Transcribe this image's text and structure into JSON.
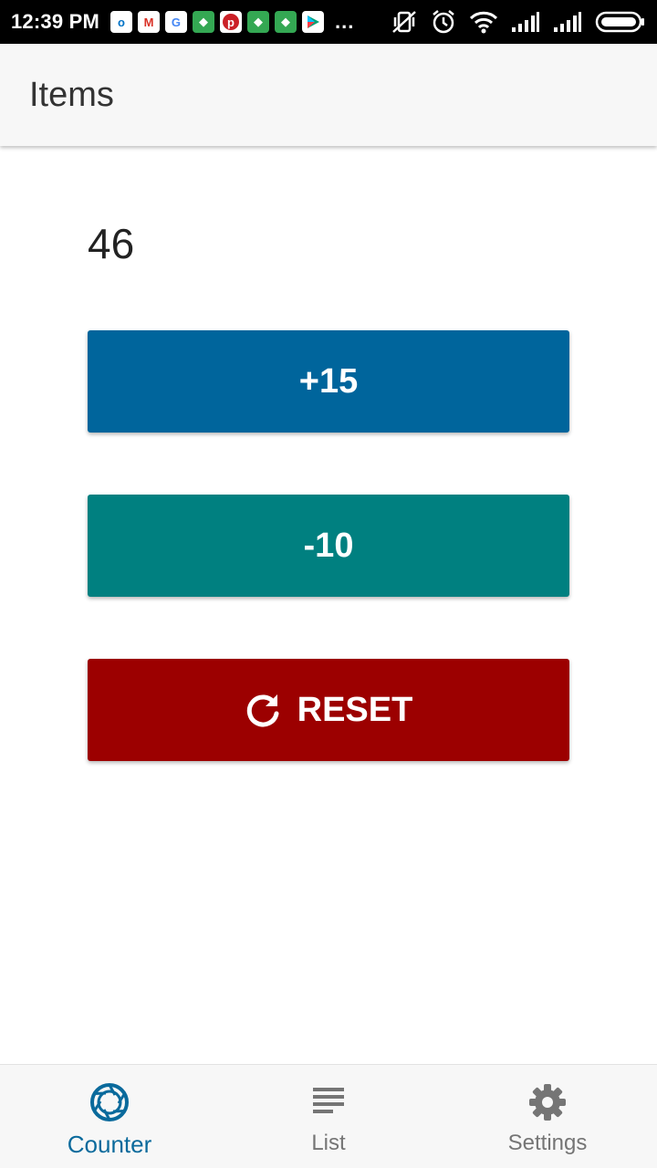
{
  "status_bar": {
    "time": "12:39 PM",
    "more": "...",
    "notifications": [
      "outlook-icon",
      "gmail-icon",
      "google-icon",
      "maps-icon",
      "pinterest-icon",
      "maps-icon",
      "maps-icon",
      "play-store-icon"
    ],
    "system_icons": [
      "vibrate-off-icon",
      "alarm-icon",
      "wifi-icon",
      "signal-icon",
      "signal-icon",
      "battery-icon"
    ]
  },
  "app_bar": {
    "title": "Items"
  },
  "counter": {
    "value": "46"
  },
  "buttons": {
    "increment": {
      "label": "+15",
      "color": "#00659c"
    },
    "decrement": {
      "label": "-10",
      "color": "#008080"
    },
    "reset": {
      "label": "RESET",
      "color": "#9c0000",
      "icon": "refresh-icon"
    }
  },
  "bottom_nav": {
    "active_color": "#0a6a9c",
    "inactive_color": "#757575",
    "items": [
      {
        "label": "Counter",
        "icon": "aperture-icon",
        "active": true
      },
      {
        "label": "List",
        "icon": "list-icon",
        "active": false
      },
      {
        "label": "Settings",
        "icon": "gear-icon",
        "active": false
      }
    ]
  }
}
